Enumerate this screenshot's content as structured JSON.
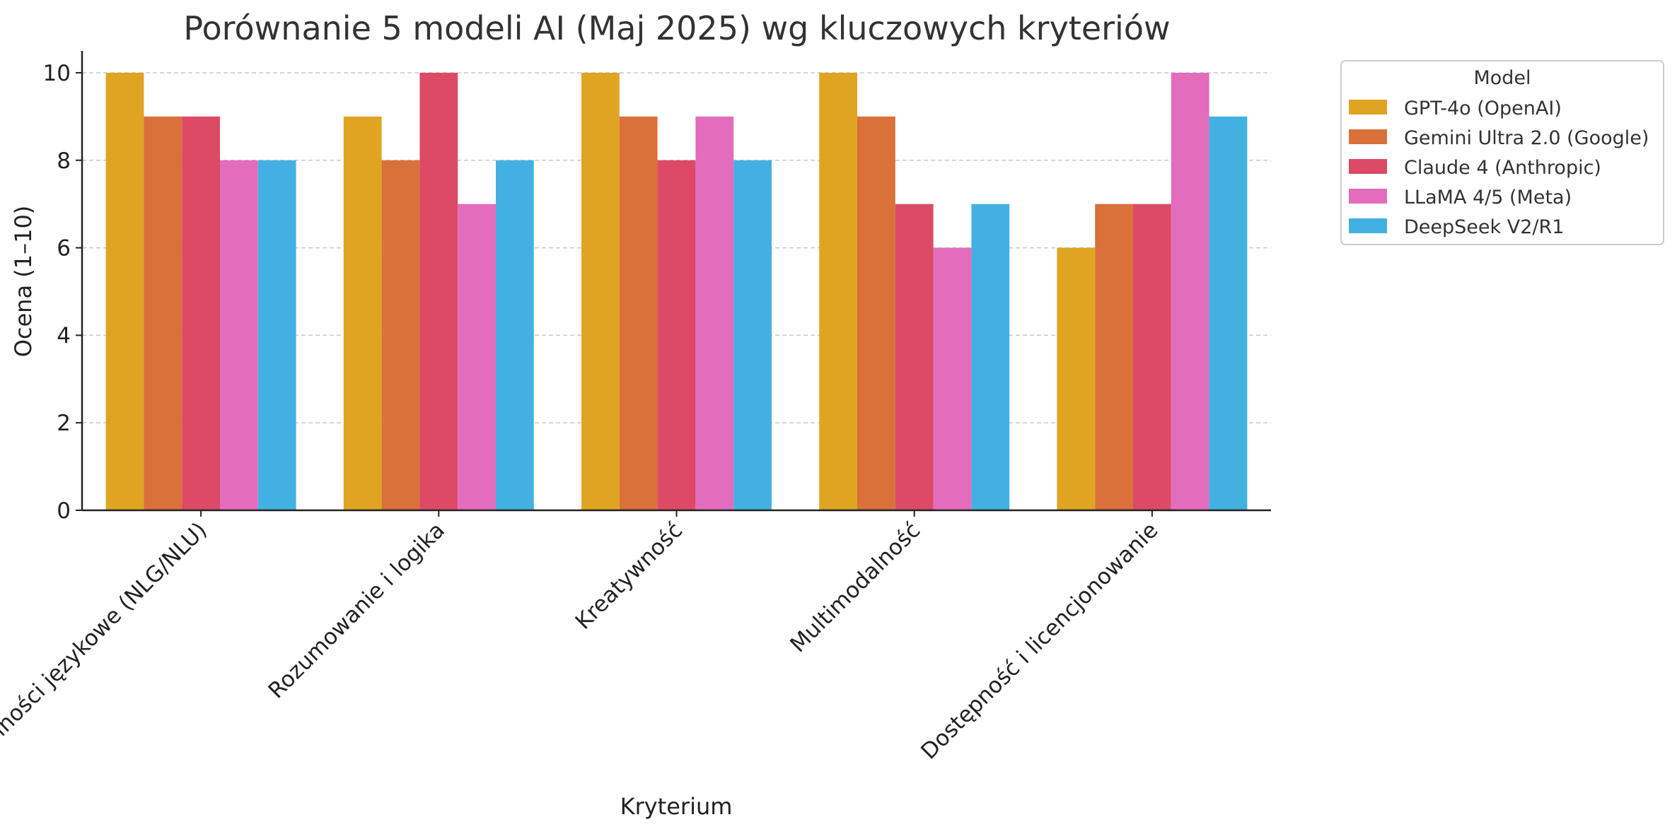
{
  "chart_data": {
    "type": "bar",
    "title": "Porównanie 5 modeli AI (Maj 2025) wg kluczowych kryteriów",
    "xlabel": "Kryterium",
    "ylabel": "Ocena (1–10)",
    "ylim": [
      0,
      10.5
    ],
    "yticks": [
      0,
      2,
      4,
      6,
      8,
      10
    ],
    "grid": true,
    "legend_title": "Model",
    "legend_position": "outside-top-right",
    "categories": [
      "Zdolności językowe (NLG/NLU)",
      "Rozumowanie i logika",
      "Kreatywność",
      "Multimodalność",
      "Dostępność i licencjonowanie"
    ],
    "series": [
      {
        "name": "GPT-4o (OpenAI)",
        "color": "#E0A423",
        "values": [
          10,
          9,
          10,
          10,
          6
        ]
      },
      {
        "name": "Gemini Ultra 2.0 (Google)",
        "color": "#DA703A",
        "values": [
          9,
          8,
          9,
          9,
          7
        ]
      },
      {
        "name": "Claude 4 (Anthropic)",
        "color": "#DC4A65",
        "values": [
          9,
          10,
          8,
          7,
          7
        ]
      },
      {
        "name": "LLaMA 4/5 (Meta)",
        "color": "#E36CBC",
        "values": [
          8,
          7,
          9,
          6,
          10
        ]
      },
      {
        "name": "DeepSeek V2/R1",
        "color": "#42B1E2",
        "values": [
          8,
          8,
          8,
          7,
          9
        ]
      }
    ]
  }
}
